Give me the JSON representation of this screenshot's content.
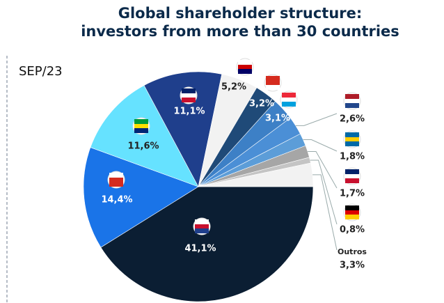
{
  "chart_data": {
    "type": "pie",
    "title": "Global shareholder structure:\ninvestors from more than 30 countries",
    "subtitle": "SEP/23",
    "categories": [
      null,
      null,
      null,
      null,
      null,
      null,
      null,
      null,
      null,
      null,
      null,
      "Outros"
    ],
    "values": [
      41.1,
      14.4,
      11.6,
      11.1,
      5.2,
      3.2,
      3.1,
      2.6,
      1.8,
      1.7,
      0.8,
      3.3
    ],
    "value_labels": [
      "41,1%",
      "14,4%",
      "11,6%",
      "11,1%",
      "5,2%",
      "3,2%",
      "3,1%",
      "2,6%",
      "1,8%",
      "1,7%",
      "0,8%",
      "3,3%"
    ],
    "colors": [
      "#0b1e33",
      "#1a74e8",
      "#66e2ff",
      "#1f3f8c",
      "#f2f2f2",
      "#1f4a78",
      "#3d80c6",
      "#4b8fd6",
      "#5c9dd8",
      "#a6a6a6",
      "#c4c4c4",
      "#f2f2f2"
    ]
  }
}
